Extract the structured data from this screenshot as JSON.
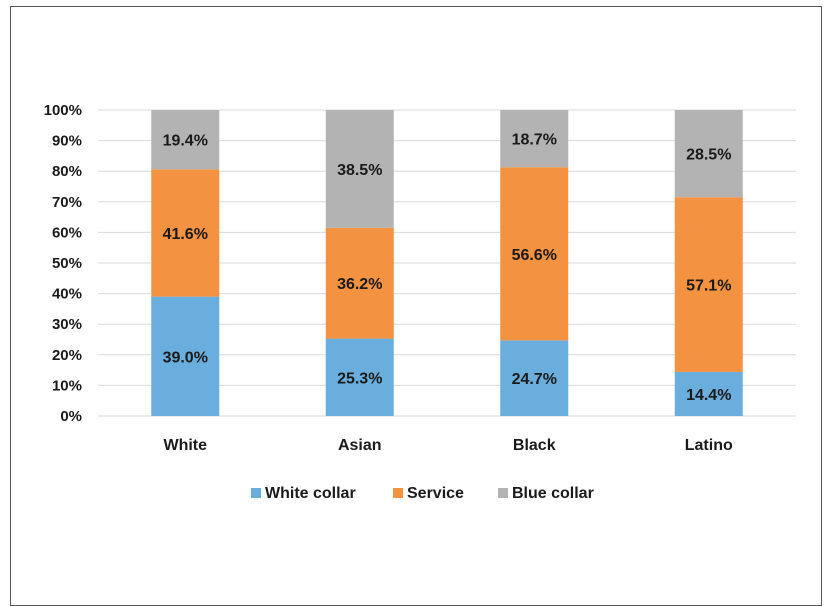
{
  "chart_data": {
    "type": "bar",
    "stacked": true,
    "categories": [
      "White",
      "Asian",
      "Black",
      "Latino"
    ],
    "series": [
      {
        "name": "White collar",
        "color": "#6aaedd",
        "values": [
          39.0,
          25.3,
          24.7,
          14.4
        ],
        "labels": [
          "39.0%",
          "25.3%",
          "24.7%",
          "14.4%"
        ]
      },
      {
        "name": "Service",
        "color": "#f39240",
        "values": [
          41.6,
          36.2,
          56.6,
          57.1
        ],
        "labels": [
          "41.6%",
          "36.2%",
          "56.6%",
          "57.1%"
        ]
      },
      {
        "name": "Blue collar",
        "color": "#b3b3b3",
        "values": [
          19.4,
          38.5,
          18.7,
          28.5
        ],
        "labels": [
          "19.4%",
          "38.5%",
          "18.7%",
          "28.5%"
        ]
      }
    ],
    "ylim": [
      0,
      100
    ],
    "yticks": [
      "0%",
      "10%",
      "20%",
      "30%",
      "40%",
      "50%",
      "60%",
      "70%",
      "80%",
      "90%",
      "100%"
    ],
    "grid": true,
    "legend_position": "bottom"
  }
}
